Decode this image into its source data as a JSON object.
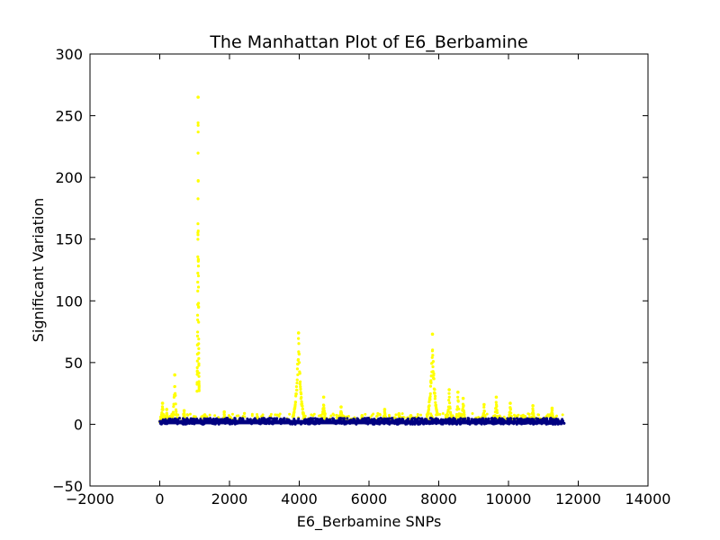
{
  "chart_data": {
    "type": "scatter",
    "title": "The Manhattan Plot of E6_Berbamine",
    "xlabel": "E6_Berbamine SNPs",
    "ylabel": "Significant Variation",
    "xlim": [
      -2000,
      14000
    ],
    "ylim": [
      -50,
      300
    ],
    "xticks": [
      -2000,
      0,
      2000,
      4000,
      6000,
      8000,
      10000,
      12000,
      14000
    ],
    "xtick_labels": [
      "−2000",
      "0",
      "2000",
      "4000",
      "6000",
      "8000",
      "10000",
      "12000",
      "14000"
    ],
    "yticks": [
      -50,
      0,
      50,
      100,
      150,
      200,
      250,
      300
    ],
    "ytick_labels": [
      "−50",
      "0",
      "50",
      "100",
      "150",
      "200",
      "250",
      "300"
    ],
    "grid": false,
    "colors": {
      "significant": "#ffff00",
      "baseline": "#000080"
    },
    "series": [
      {
        "color": "#000080",
        "x_range": [
          0,
          11600
        ],
        "y_range": [
          0,
          5
        ]
      },
      {
        "color": "#ffff00",
        "peaks": [
          {
            "x": 80,
            "y": 17
          },
          {
            "x": 200,
            "y": 12
          },
          {
            "x": 430,
            "y": 40
          },
          {
            "x": 700,
            "y": 11
          },
          {
            "x": 1100,
            "y": 265
          },
          {
            "x": 1850,
            "y": 10
          },
          {
            "x": 2800,
            "y": 6
          },
          {
            "x": 3980,
            "y": 74
          },
          {
            "x": 4700,
            "y": 22
          },
          {
            "x": 5200,
            "y": 14
          },
          {
            "x": 5800,
            "y": 7
          },
          {
            "x": 6450,
            "y": 12
          },
          {
            "x": 7200,
            "y": 7
          },
          {
            "x": 7820,
            "y": 73
          },
          {
            "x": 8300,
            "y": 28
          },
          {
            "x": 8550,
            "y": 26
          },
          {
            "x": 8700,
            "y": 21
          },
          {
            "x": 9300,
            "y": 16
          },
          {
            "x": 9650,
            "y": 22
          },
          {
            "x": 10050,
            "y": 17
          },
          {
            "x": 10700,
            "y": 15
          },
          {
            "x": 11250,
            "y": 13
          }
        ]
      }
    ]
  }
}
